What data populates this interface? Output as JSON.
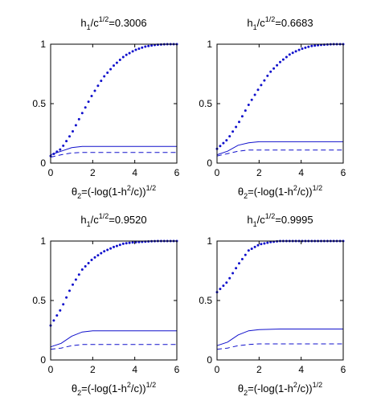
{
  "chart_data": [
    {
      "type": "line",
      "title_parts": {
        "h": "h",
        "sub": "1",
        "mid": "/c",
        "sup": "1/2",
        "eq": "=0.3006"
      },
      "xlabel_parts": {
        "theta": "θ",
        "sub": "2",
        "a": "=(-log(1-h",
        "sup2": "2",
        "b": "/c))",
        "sup": "1/2"
      },
      "xlim": [
        0,
        6
      ],
      "ylim": [
        0,
        1
      ],
      "xticks": [
        "0",
        "2",
        "4",
        "6"
      ],
      "yticks": [
        "0",
        "0.5",
        "1"
      ],
      "series": [
        {
          "style": "dotted",
          "x": [
            0,
            0.5,
            1,
            1.5,
            2,
            2.5,
            3,
            3.5,
            4,
            4.5,
            5,
            5.5,
            6
          ],
          "values": [
            0.06,
            0.12,
            0.25,
            0.42,
            0.58,
            0.72,
            0.82,
            0.9,
            0.95,
            0.98,
            0.995,
            1.0,
            1.0
          ]
        },
        {
          "style": "solid",
          "x": [
            0,
            0.5,
            1,
            1.5,
            2,
            3,
            4,
            5,
            6
          ],
          "values": [
            0.07,
            0.1,
            0.13,
            0.14,
            0.14,
            0.14,
            0.14,
            0.14,
            0.14
          ]
        },
        {
          "style": "dashed",
          "x": [
            0,
            0.5,
            1,
            1.5,
            2,
            3,
            4,
            5,
            6
          ],
          "values": [
            0.05,
            0.07,
            0.085,
            0.09,
            0.09,
            0.09,
            0.09,
            0.09,
            0.09
          ]
        }
      ]
    },
    {
      "type": "line",
      "title_parts": {
        "h": "h",
        "sub": "1",
        "mid": "/c",
        "sup": "1/2",
        "eq": "=0.6683"
      },
      "xlabel_parts": {
        "theta": "θ",
        "sub": "2",
        "a": "=(-log(1-h",
        "sup2": "2",
        "b": "/c))",
        "sup": "1/2"
      },
      "xlim": [
        0,
        6
      ],
      "ylim": [
        0,
        1
      ],
      "xticks": [
        "0",
        "2",
        "4",
        "6"
      ],
      "yticks": [
        "0",
        "0.5",
        "1"
      ],
      "series": [
        {
          "style": "dotted",
          "x": [
            0,
            0.5,
            1,
            1.5,
            2,
            2.5,
            3,
            3.5,
            4,
            4.5,
            5,
            5.5,
            6
          ],
          "values": [
            0.12,
            0.2,
            0.33,
            0.49,
            0.63,
            0.76,
            0.85,
            0.92,
            0.96,
            0.985,
            0.995,
            1.0,
            1.0
          ]
        },
        {
          "style": "solid",
          "x": [
            0,
            0.5,
            1,
            1.5,
            2,
            3,
            4,
            5,
            6
          ],
          "values": [
            0.07,
            0.1,
            0.15,
            0.17,
            0.18,
            0.18,
            0.18,
            0.18,
            0.18
          ]
        },
        {
          "style": "dashed",
          "x": [
            0,
            0.5,
            1,
            1.5,
            2,
            3,
            4,
            5,
            6
          ],
          "values": [
            0.06,
            0.08,
            0.1,
            0.11,
            0.11,
            0.11,
            0.11,
            0.11,
            0.11
          ]
        }
      ]
    },
    {
      "type": "line",
      "title_parts": {
        "h": "h",
        "sub": "1",
        "mid": "/c",
        "sup": "1/2",
        "eq": "=0.9520"
      },
      "xlabel_parts": {
        "theta": "θ",
        "sub": "2",
        "a": "=(-log(1-h",
        "sup2": "2",
        "b": "/c))",
        "sup": "1/2"
      },
      "xlim": [
        0,
        6
      ],
      "ylim": [
        0,
        1
      ],
      "xticks": [
        "0",
        "2",
        "4",
        "6"
      ],
      "yticks": [
        "0",
        "0.5",
        "1"
      ],
      "series": [
        {
          "style": "dotted",
          "x": [
            0,
            0.5,
            1,
            1.5,
            2,
            2.5,
            3,
            3.5,
            4,
            4.5,
            5,
            5.5,
            6
          ],
          "values": [
            0.29,
            0.43,
            0.62,
            0.76,
            0.85,
            0.91,
            0.95,
            0.98,
            0.99,
            0.995,
            1.0,
            1.0,
            1.0
          ]
        },
        {
          "style": "solid",
          "x": [
            0,
            0.5,
            1,
            1.5,
            2,
            3,
            4,
            5,
            6
          ],
          "values": [
            0.11,
            0.14,
            0.2,
            0.235,
            0.245,
            0.245,
            0.245,
            0.245,
            0.245
          ]
        },
        {
          "style": "dashed",
          "x": [
            0,
            0.5,
            1,
            1.5,
            2,
            3,
            4,
            5,
            6
          ],
          "values": [
            0.09,
            0.1,
            0.12,
            0.13,
            0.13,
            0.13,
            0.13,
            0.13,
            0.13
          ]
        }
      ]
    },
    {
      "type": "line",
      "title_parts": {
        "h": "h",
        "sub": "1",
        "mid": "/c",
        "sup": "1/2",
        "eq": "=0.9995"
      },
      "xlabel_parts": {
        "theta": "θ",
        "sub": "2",
        "a": "=(-log(1-h",
        "sup2": "2",
        "b": "/c))",
        "sup": "1/2"
      },
      "xlim": [
        0,
        6
      ],
      "ylim": [
        0,
        1
      ],
      "xticks": [
        "0",
        "2",
        "4",
        "6"
      ],
      "yticks": [
        "0",
        "0.5",
        "1"
      ],
      "series": [
        {
          "style": "dotted",
          "x": [
            0,
            0.5,
            1,
            1.5,
            2,
            2.5,
            3,
            3.5,
            4,
            4.5,
            5,
            5.5,
            6
          ],
          "values": [
            0.57,
            0.66,
            0.8,
            0.92,
            0.97,
            0.99,
            1.0,
            1.0,
            1.0,
            1.0,
            1.0,
            1.0,
            1.0
          ]
        },
        {
          "style": "solid",
          "x": [
            0,
            0.5,
            1,
            1.5,
            2,
            3,
            4,
            5,
            6
          ],
          "values": [
            0.12,
            0.15,
            0.21,
            0.245,
            0.255,
            0.26,
            0.26,
            0.26,
            0.26
          ]
        },
        {
          "style": "dashed",
          "x": [
            0,
            0.5,
            1,
            1.5,
            2,
            3,
            4,
            5,
            6
          ],
          "values": [
            0.09,
            0.1,
            0.12,
            0.13,
            0.135,
            0.135,
            0.135,
            0.135,
            0.135
          ]
        }
      ]
    }
  ],
  "colors": {
    "line": "#1010cc",
    "axis": "#000000"
  }
}
